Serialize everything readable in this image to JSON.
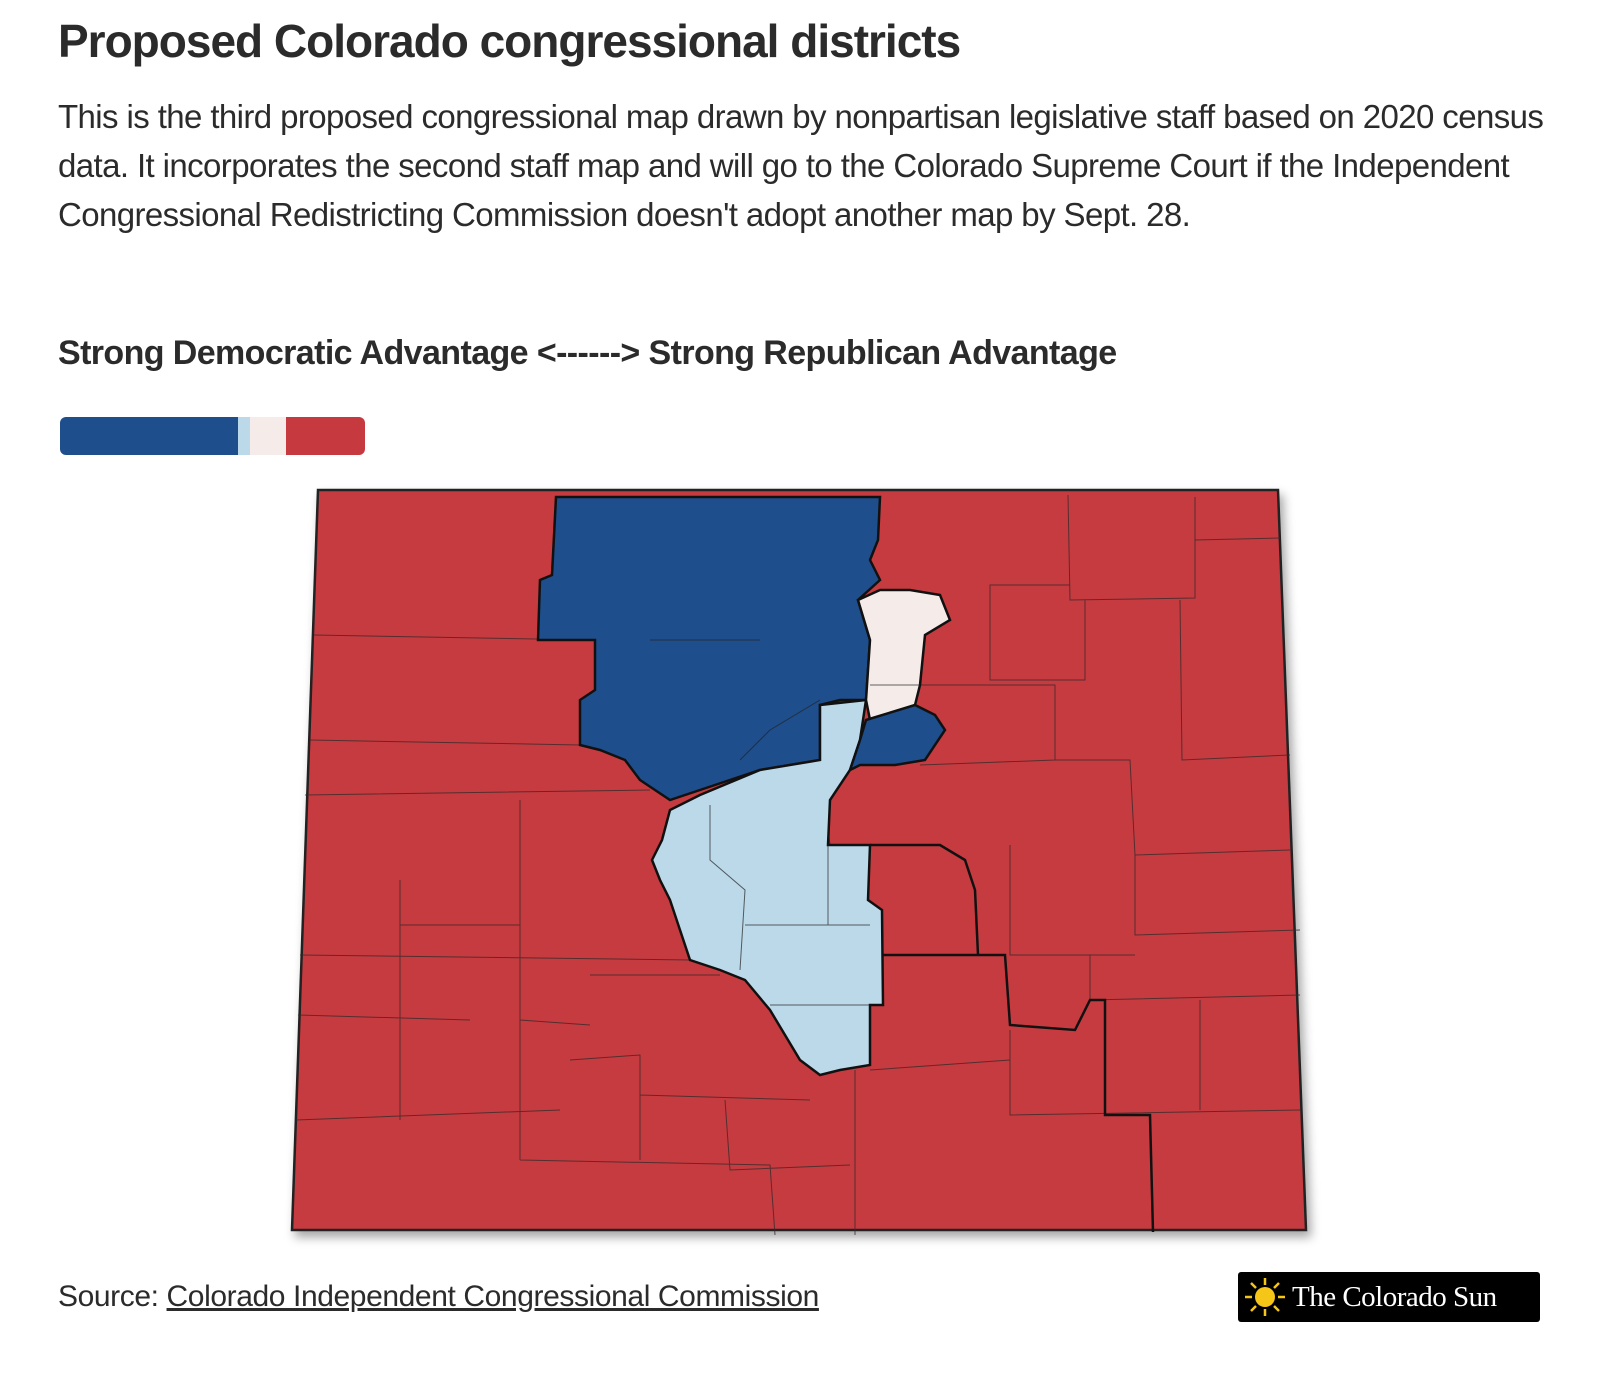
{
  "header": {
    "title": "Proposed Colorado congressional districts",
    "description": "This is the third proposed congressional map drawn by nonpartisan legislative staff based on 2020 census data. It incorporates the second staff map and will go to the Colorado Supreme Court if the Independent Congressional Redistricting Commission doesn't adopt another map by Sept. 28."
  },
  "legend": {
    "label": "Strong Democratic Advantage <------> Strong Republican Advantage"
  },
  "footer": {
    "source_prefix": "Source:",
    "source_link": "Colorado Independent Congressional Commission",
    "logo": "The Colorado Sun"
  }
}
